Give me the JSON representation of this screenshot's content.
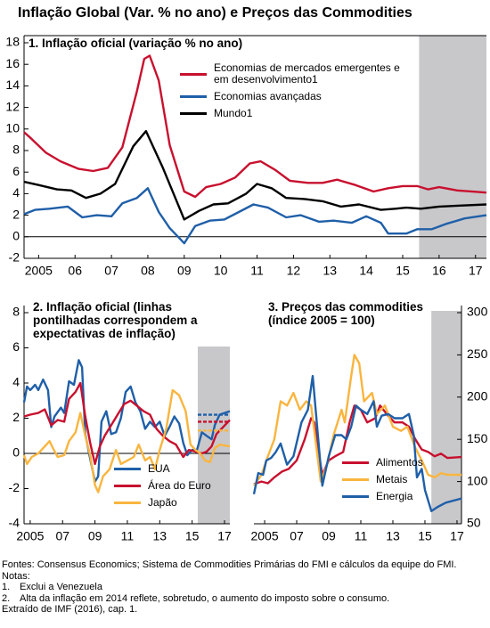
{
  "title": "Inflação Global (Var. % no ano) e Preços das Commodities",
  "chart_data": [
    {
      "type": "line",
      "title": "1. Inflação oficial (variação % no ano)",
      "xlim": [
        2005.1,
        2017.8
      ],
      "xticks": [
        {
          "value": 2005.5,
          "label": "2005"
        },
        {
          "value": 2006.5,
          "label": "06"
        },
        {
          "value": 2007.5,
          "label": "07"
        },
        {
          "value": 2008.5,
          "label": "08"
        },
        {
          "value": 2009.5,
          "label": "09"
        },
        {
          "value": 2010.5,
          "label": "10"
        },
        {
          "value": 2011.5,
          "label": "11"
        },
        {
          "value": 2012.5,
          "label": "12"
        },
        {
          "value": 2013.5,
          "label": "13"
        },
        {
          "value": 2014.5,
          "label": "14"
        },
        {
          "value": 2015.5,
          "label": "15"
        },
        {
          "value": 2016.5,
          "label": "16"
        },
        {
          "value": 2017.5,
          "label": "17"
        }
      ],
      "ylim": [
        -2,
        18
      ],
      "yticks": [
        -2,
        0,
        2,
        4,
        6,
        8,
        10,
        12,
        14,
        16,
        18
      ],
      "y_axis": "left",
      "shade_from": 2015.95,
      "zero_line": true,
      "series": [
        {
          "name": "Economias de mercados emergentes e em desenvolvimento1",
          "color": "#c8102e",
          "x": [
            2005.1,
            2005.3,
            2005.7,
            2006.1,
            2006.6,
            2007.0,
            2007.4,
            2007.8,
            2008.2,
            2008.4,
            2008.55,
            2008.8,
            2009.1,
            2009.5,
            2009.8,
            2010.1,
            2010.5,
            2010.9,
            2011.3,
            2011.6,
            2012.0,
            2012.4,
            2012.9,
            2013.3,
            2013.7,
            2014.2,
            2014.7,
            2015.1,
            2015.5,
            2015.9,
            2016.2,
            2016.5,
            2017.0,
            2017.8
          ],
          "values": [
            9.7,
            9.1,
            7.8,
            7.0,
            6.3,
            6.1,
            6.4,
            8.3,
            13.5,
            16.5,
            16.8,
            14.5,
            8.5,
            4.2,
            3.7,
            4.6,
            4.9,
            5.5,
            6.8,
            7.0,
            6.2,
            5.2,
            5.0,
            5.0,
            5.3,
            4.8,
            4.2,
            4.5,
            4.7,
            4.7,
            4.4,
            4.6,
            4.3,
            4.1
          ]
        },
        {
          "name": "Economias avançadas",
          "color": "#1f5fa8",
          "x": [
            2005.1,
            2005.4,
            2005.8,
            2006.3,
            2006.7,
            2007.1,
            2007.5,
            2007.8,
            2008.2,
            2008.5,
            2008.8,
            2009.1,
            2009.5,
            2009.8,
            2010.2,
            2010.6,
            2011.0,
            2011.4,
            2011.8,
            2012.3,
            2012.7,
            2013.2,
            2013.6,
            2014.1,
            2014.5,
            2014.9,
            2015.1,
            2015.6,
            2015.9,
            2016.3,
            2016.7,
            2017.2,
            2017.8
          ],
          "values": [
            2.1,
            2.5,
            2.6,
            2.8,
            1.8,
            2.0,
            1.9,
            3.1,
            3.6,
            4.5,
            2.3,
            0.8,
            -0.6,
            1.0,
            1.5,
            1.6,
            2.3,
            3.0,
            2.7,
            1.8,
            2.0,
            1.4,
            1.5,
            1.3,
            1.9,
            1.3,
            0.3,
            0.3,
            0.7,
            0.7,
            1.2,
            1.7,
            2.0
          ]
        },
        {
          "name": "Mundo1",
          "color": "#000000",
          "x": [
            2005.1,
            2005.5,
            2006.0,
            2006.4,
            2006.8,
            2007.2,
            2007.6,
            2008.1,
            2008.45,
            2008.9,
            2009.5,
            2009.9,
            2010.3,
            2010.7,
            2011.2,
            2011.5,
            2011.9,
            2012.3,
            2012.8,
            2013.3,
            2013.8,
            2014.3,
            2014.9,
            2015.3,
            2015.6,
            2016.0,
            2016.5,
            2017.8
          ],
          "values": [
            5.1,
            4.8,
            4.4,
            4.3,
            3.6,
            4.0,
            4.9,
            8.4,
            9.8,
            6.5,
            1.6,
            2.4,
            3.0,
            3.1,
            4.0,
            4.9,
            4.5,
            3.6,
            3.5,
            3.3,
            2.8,
            3.0,
            2.5,
            2.6,
            2.7,
            2.6,
            2.8,
            3.0
          ]
        }
      ]
    },
    {
      "type": "line",
      "title": "2. Inflação oficial (linhas pontilhadas correspondem a expectativas de inflação)",
      "xlim": [
        2005.12,
        2017.83
      ],
      "xticks": [
        {
          "value": 2005.5,
          "label": "2005"
        },
        {
          "value": 2007.5,
          "label": "07"
        },
        {
          "value": 2009.5,
          "label": "09"
        },
        {
          "value": 2011.5,
          "label": "11"
        },
        {
          "value": 2013.5,
          "label": "13"
        },
        {
          "value": 2015.5,
          "label": "15"
        },
        {
          "value": 2017.5,
          "label": "17"
        }
      ],
      "ylim": [
        -4,
        8
      ],
      "yticks": [
        -4,
        -2,
        0,
        2,
        4,
        6,
        8
      ],
      "y_axis": "left",
      "shade_from": 2015.85,
      "zero_line": true,
      "series": [
        {
          "name": "EUA",
          "color": "#1f5fa8",
          "expectation": 2.2,
          "x": [
            2005.12,
            2005.3,
            2005.5,
            2005.8,
            2006.0,
            2006.3,
            2006.6,
            2006.8,
            2007.0,
            2007.4,
            2007.6,
            2007.9,
            2008.2,
            2008.5,
            2008.7,
            2008.9,
            2009.2,
            2009.5,
            2009.7,
            2009.9,
            2010.2,
            2010.5,
            2010.8,
            2011.1,
            2011.4,
            2011.7,
            2012.0,
            2012.3,
            2012.6,
            2012.9,
            2013.2,
            2013.5,
            2013.8,
            2014.1,
            2014.4,
            2014.7,
            2014.95,
            2015.2,
            2015.5,
            2015.8,
            2016.1,
            2016.4,
            2016.7,
            2016.9,
            2017.2,
            2017.83
          ],
          "values": [
            2.9,
            3.8,
            3.6,
            3.9,
            3.6,
            4.2,
            3.6,
            1.5,
            2.1,
            2.6,
            2.3,
            4.1,
            3.9,
            5.3,
            4.9,
            1.1,
            -0.3,
            -1.6,
            -1.3,
            1.8,
            2.4,
            1.1,
            1.2,
            2.0,
            3.5,
            3.8,
            2.9,
            2.4,
            1.4,
            1.8,
            1.5,
            1.8,
            1.0,
            1.5,
            2.1,
            1.7,
            0.6,
            -0.1,
            0.2,
            0.2,
            1.2,
            1.0,
            0.8,
            1.6,
            2.2,
            2.4
          ]
        },
        {
          "name": "Área do Euro",
          "color": "#c8102e",
          "expectation": 1.8,
          "x": [
            2005.12,
            2005.5,
            2006.0,
            2006.4,
            2006.8,
            2007.2,
            2007.6,
            2007.9,
            2008.3,
            2008.6,
            2008.9,
            2009.2,
            2009.5,
            2009.8,
            2010.1,
            2010.5,
            2010.9,
            2011.3,
            2011.7,
            2012.1,
            2012.5,
            2012.9,
            2013.3,
            2013.7,
            2014.1,
            2014.5,
            2014.95,
            2015.3,
            2015.7,
            2016.1,
            2016.4,
            2016.7,
            2017.0,
            2017.83
          ],
          "values": [
            2.1,
            2.2,
            2.3,
            2.5,
            1.6,
            1.9,
            1.8,
            3.1,
            3.5,
            4.0,
            2.1,
            0.6,
            -0.6,
            0.4,
            1.0,
            1.6,
            2.2,
            2.8,
            3.0,
            2.7,
            2.4,
            2.2,
            1.4,
            1.0,
            0.7,
            0.5,
            -0.2,
            0.2,
            0.1,
            0.0,
            0.1,
            0.4,
            1.1,
            1.9
          ]
        },
        {
          "name": "Japão",
          "color": "#f9b53f",
          "expectation": 1.3,
          "x": [
            2005.12,
            2005.3,
            2005.6,
            2006.0,
            2006.4,
            2006.7,
            2006.9,
            2007.2,
            2007.6,
            2007.9,
            2008.3,
            2008.6,
            2008.9,
            2009.2,
            2009.5,
            2009.7,
            2010.0,
            2010.4,
            2010.8,
            2011.1,
            2011.5,
            2011.9,
            2012.2,
            2012.6,
            2012.9,
            2013.2,
            2013.5,
            2013.9,
            2014.3,
            2014.7,
            2015.1,
            2015.4,
            2015.7,
            2016.0,
            2016.3,
            2016.6,
            2016.9,
            2017.2,
            2017.83
          ],
          "values": [
            -0.1,
            -0.6,
            -0.2,
            0.0,
            0.4,
            0.7,
            0.3,
            -0.2,
            -0.1,
            0.7,
            1.2,
            2.3,
            1.0,
            -0.1,
            -1.8,
            -2.2,
            -1.3,
            -0.9,
            0.2,
            -0.6,
            -0.4,
            -0.2,
            0.5,
            -0.4,
            -0.2,
            -0.9,
            0.2,
            1.4,
            3.6,
            3.3,
            2.4,
            0.5,
            0.2,
            0.0,
            -0.4,
            -0.5,
            0.3,
            0.5,
            0.4
          ]
        }
      ]
    },
    {
      "type": "line",
      "title": "3. Preços das commodities (índice 2005 = 100)",
      "xlim": [
        2004.83,
        2017.78
      ],
      "xticks": [
        {
          "value": 2005.5,
          "label": "2005"
        },
        {
          "value": 2007.5,
          "label": "07"
        },
        {
          "value": 2009.5,
          "label": "09"
        },
        {
          "value": 2011.5,
          "label": "11"
        },
        {
          "value": 2013.5,
          "label": "13"
        },
        {
          "value": 2015.5,
          "label": "15"
        },
        {
          "value": 2017.5,
          "label": "17"
        }
      ],
      "ylim": [
        50,
        300
      ],
      "yticks": [
        50,
        100,
        150,
        200,
        250,
        300
      ],
      "y_axis": "right",
      "shade_from": 2015.9,
      "zero_line": false,
      "series": [
        {
          "name": "Alimentos",
          "color": "#c8102e",
          "x": [
            2004.83,
            2005.3,
            2005.7,
            2006.1,
            2006.6,
            2007.0,
            2007.5,
            2008.0,
            2008.4,
            2008.6,
            2008.9,
            2009.1,
            2009.5,
            2009.9,
            2010.4,
            2010.8,
            2011.1,
            2011.5,
            2011.9,
            2012.4,
            2012.7,
            2013.2,
            2013.6,
            2014.1,
            2014.5,
            2014.9,
            2015.3,
            2015.7,
            2016.1,
            2016.5,
            2016.9,
            2017.78
          ],
          "values": [
            97,
            100,
            98,
            105,
            112,
            115,
            125,
            150,
            175,
            170,
            130,
            108,
            125,
            130,
            135,
            170,
            190,
            185,
            170,
            175,
            190,
            178,
            170,
            170,
            165,
            150,
            138,
            135,
            130,
            133,
            128,
            129
          ]
        },
        {
          "name": "Metais",
          "color": "#f9b53f",
          "x": [
            2004.83,
            2005.3,
            2005.7,
            2006.1,
            2006.5,
            2006.9,
            2007.3,
            2007.7,
            2008.1,
            2008.4,
            2008.8,
            2009.0,
            2009.4,
            2009.8,
            2010.3,
            2010.5,
            2010.9,
            2011.1,
            2011.4,
            2011.7,
            2012.2,
            2012.5,
            2013.0,
            2013.5,
            2014.0,
            2014.4,
            2014.9,
            2015.3,
            2015.7,
            2016.1,
            2016.5,
            2016.9,
            2017.78
          ],
          "values": [
            95,
            108,
            130,
            150,
            195,
            190,
            205,
            185,
            195,
            190,
            130,
            100,
            120,
            155,
            185,
            170,
            225,
            250,
            240,
            195,
            205,
            180,
            190,
            165,
            160,
            165,
            140,
            125,
            108,
            105,
            110,
            108,
            108
          ]
        },
        {
          "name": "Energia",
          "color": "#1f5fa8",
          "x": [
            2004.83,
            2005.1,
            2005.4,
            2005.6,
            2005.9,
            2006.2,
            2006.5,
            2006.9,
            2007.3,
            2007.8,
            2008.2,
            2008.5,
            2008.8,
            2009.1,
            2009.5,
            2009.9,
            2010.3,
            2010.6,
            2010.9,
            2011.2,
            2011.5,
            2011.9,
            2012.3,
            2012.5,
            2012.8,
            2013.2,
            2013.6,
            2014.1,
            2014.5,
            2014.8,
            2015.0,
            2015.3,
            2015.5,
            2015.9,
            2016.3,
            2016.8,
            2017.78
          ],
          "values": [
            85,
            110,
            108,
            125,
            128,
            135,
            145,
            120,
            130,
            170,
            185,
            225,
            160,
            95,
            130,
            155,
            155,
            150,
            165,
            190,
            185,
            180,
            195,
            165,
            178,
            180,
            175,
            175,
            180,
            155,
            105,
            115,
            90,
            65,
            70,
            75,
            80
          ]
        }
      ]
    }
  ],
  "footer": {
    "source": "Fontes: Consensus Economics; Sistema de Commodities Primárias do FMI e cálculos da equipe do FMI.",
    "notes_label": "Notas:",
    "notes": [
      {
        "num": "1.",
        "text": "Exclui a Venezuela"
      },
      {
        "num": "2.",
        "text": "Alta da inflação em 2014 reflete, sobretudo, o aumento do imposto sobre o consumo."
      }
    ],
    "extract": "Extraído de IMF (2016), cap. 1."
  }
}
